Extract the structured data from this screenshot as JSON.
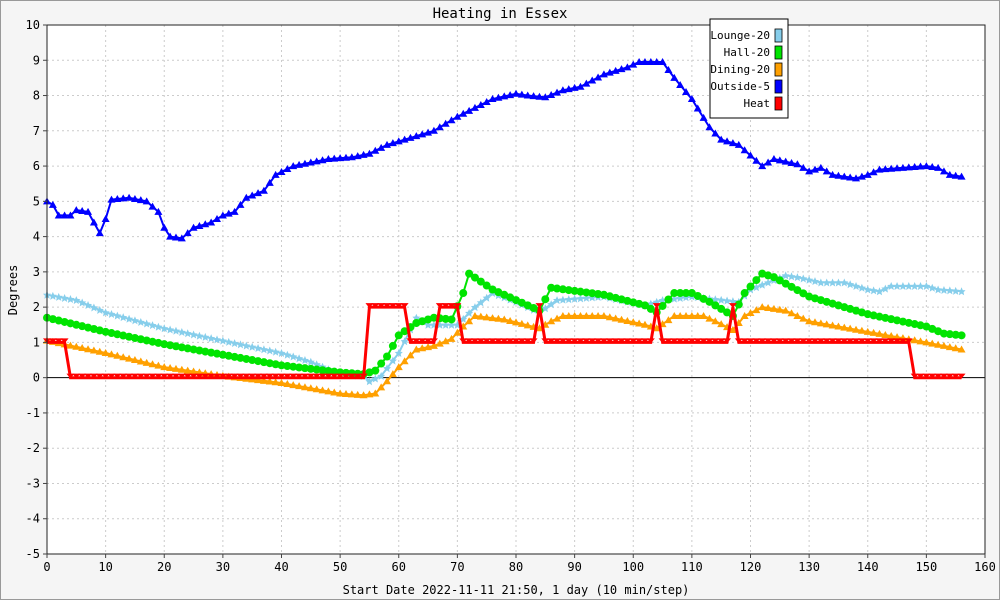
{
  "chart_data": {
    "type": "line",
    "title": "Heating in Essex",
    "xlabel": "Start Date 2022-11-11 21:50, 1 day (10 min/step)",
    "ylabel": "Degrees",
    "xlim": [
      0,
      160
    ],
    "ylim": [
      -5,
      10
    ],
    "xticks": [
      0,
      10,
      20,
      30,
      40,
      50,
      60,
      70,
      80,
      90,
      100,
      110,
      120,
      130,
      140,
      150,
      160
    ],
    "yticks": [
      -5,
      -4,
      -3,
      -2,
      -1,
      0,
      1,
      2,
      3,
      4,
      5,
      6,
      7,
      8,
      9,
      10
    ],
    "grid": true,
    "legend_position": "top-right",
    "series": [
      {
        "name": "Lounge-20",
        "color": "#87ceeb",
        "marker": "star",
        "points": [
          [
            0,
            2.35
          ],
          [
            5,
            2.2
          ],
          [
            10,
            1.85
          ],
          [
            20,
            1.4
          ],
          [
            30,
            1.05
          ],
          [
            40,
            0.7
          ],
          [
            45,
            0.45
          ],
          [
            50,
            0.1
          ],
          [
            54,
            0.05
          ],
          [
            55,
            -0.1
          ],
          [
            57,
            0.05
          ],
          [
            60,
            0.7
          ],
          [
            63,
            1.7
          ],
          [
            65,
            1.5
          ],
          [
            68,
            1.5
          ],
          [
            70,
            1.5
          ],
          [
            73,
            2.0
          ],
          [
            76,
            2.4
          ],
          [
            80,
            2.15
          ],
          [
            84,
            1.85
          ],
          [
            87,
            2.2
          ],
          [
            95,
            2.3
          ],
          [
            102,
            2.05
          ],
          [
            105,
            2.2
          ],
          [
            110,
            2.3
          ],
          [
            118,
            2.15
          ],
          [
            120,
            2.5
          ],
          [
            126,
            2.9
          ],
          [
            128,
            2.85
          ],
          [
            132,
            2.7
          ],
          [
            136,
            2.7
          ],
          [
            140,
            2.5
          ],
          [
            142,
            2.45
          ],
          [
            144,
            2.6
          ],
          [
            150,
            2.6
          ],
          [
            152,
            2.5
          ],
          [
            156,
            2.45
          ]
        ]
      },
      {
        "name": "Hall-20",
        "color": "#00e400",
        "marker": "circle",
        "points": [
          [
            0,
            1.7
          ],
          [
            10,
            1.3
          ],
          [
            20,
            0.95
          ],
          [
            30,
            0.65
          ],
          [
            40,
            0.35
          ],
          [
            50,
            0.15
          ],
          [
            54,
            0.1
          ],
          [
            56,
            0.2
          ],
          [
            58,
            0.6
          ],
          [
            60,
            1.2
          ],
          [
            63,
            1.55
          ],
          [
            66,
            1.7
          ],
          [
            69,
            1.65
          ],
          [
            71,
            2.4
          ],
          [
            72,
            2.95
          ],
          [
            76,
            2.5
          ],
          [
            80,
            2.2
          ],
          [
            84,
            1.9
          ],
          [
            86,
            2.55
          ],
          [
            95,
            2.35
          ],
          [
            102,
            2.05
          ],
          [
            104,
            1.85
          ],
          [
            107,
            2.4
          ],
          [
            110,
            2.4
          ],
          [
            113,
            2.15
          ],
          [
            117,
            1.75
          ],
          [
            119,
            2.4
          ],
          [
            122,
            2.95
          ],
          [
            124,
            2.85
          ],
          [
            130,
            2.3
          ],
          [
            140,
            1.8
          ],
          [
            150,
            1.45
          ],
          [
            153,
            1.25
          ],
          [
            156,
            1.2
          ]
        ]
      },
      {
        "name": "Dining-20",
        "color": "#ffa000",
        "marker": "triangle",
        "points": [
          [
            0,
            1.05
          ],
          [
            10,
            0.7
          ],
          [
            20,
            0.3
          ],
          [
            30,
            0.05
          ],
          [
            40,
            -0.15
          ],
          [
            50,
            -0.45
          ],
          [
            54,
            -0.5
          ],
          [
            56,
            -0.45
          ],
          [
            58,
            -0.1
          ],
          [
            60,
            0.3
          ],
          [
            63,
            0.8
          ],
          [
            66,
            0.9
          ],
          [
            69,
            1.1
          ],
          [
            71,
            1.45
          ],
          [
            73,
            1.75
          ],
          [
            78,
            1.65
          ],
          [
            84,
            1.4
          ],
          [
            86,
            1.6
          ],
          [
            88,
            1.75
          ],
          [
            95,
            1.75
          ],
          [
            102,
            1.5
          ],
          [
            104,
            1.4
          ],
          [
            107,
            1.75
          ],
          [
            112,
            1.75
          ],
          [
            114,
            1.6
          ],
          [
            117,
            1.35
          ],
          [
            119,
            1.75
          ],
          [
            122,
            2.0
          ],
          [
            126,
            1.9
          ],
          [
            130,
            1.6
          ],
          [
            140,
            1.3
          ],
          [
            150,
            1.0
          ],
          [
            156,
            0.8
          ]
        ]
      },
      {
        "name": "Outside-5",
        "color": "#0000ff",
        "marker": "triangle",
        "points": [
          [
            0,
            5.0
          ],
          [
            1,
            4.9
          ],
          [
            2,
            4.6
          ],
          [
            4,
            4.6
          ],
          [
            5,
            4.75
          ],
          [
            7,
            4.7
          ],
          [
            9,
            4.1
          ],
          [
            10,
            4.5
          ],
          [
            11,
            5.05
          ],
          [
            14,
            5.1
          ],
          [
            17,
            5.0
          ],
          [
            19,
            4.7
          ],
          [
            20,
            4.25
          ],
          [
            21,
            4.0
          ],
          [
            23,
            3.95
          ],
          [
            25,
            4.25
          ],
          [
            28,
            4.4
          ],
          [
            30,
            4.6
          ],
          [
            32,
            4.7
          ],
          [
            34,
            5.1
          ],
          [
            37,
            5.3
          ],
          [
            39,
            5.75
          ],
          [
            42,
            6.0
          ],
          [
            48,
            6.2
          ],
          [
            52,
            6.25
          ],
          [
            55,
            6.35
          ],
          [
            58,
            6.6
          ],
          [
            62,
            6.8
          ],
          [
            66,
            7.0
          ],
          [
            70,
            7.4
          ],
          [
            73,
            7.65
          ],
          [
            76,
            7.9
          ],
          [
            80,
            8.05
          ],
          [
            82,
            8.0
          ],
          [
            85,
            7.95
          ],
          [
            88,
            8.15
          ],
          [
            91,
            8.25
          ],
          [
            95,
            8.6
          ],
          [
            99,
            8.8
          ],
          [
            101,
            8.95
          ],
          [
            105,
            8.95
          ],
          [
            107,
            8.5
          ],
          [
            110,
            7.9
          ],
          [
            113,
            7.1
          ],
          [
            115,
            6.75
          ],
          [
            118,
            6.6
          ],
          [
            120,
            6.3
          ],
          [
            122,
            6.0
          ],
          [
            124,
            6.2
          ],
          [
            128,
            6.05
          ],
          [
            130,
            5.85
          ],
          [
            132,
            5.95
          ],
          [
            134,
            5.75
          ],
          [
            138,
            5.65
          ],
          [
            140,
            5.75
          ],
          [
            142,
            5.9
          ],
          [
            146,
            5.95
          ],
          [
            150,
            6.0
          ],
          [
            152,
            5.95
          ],
          [
            154,
            5.75
          ],
          [
            156,
            5.7
          ]
        ]
      },
      {
        "name": "Heat",
        "color": "#ff0000",
        "marker": "chevron",
        "points": [
          [
            0,
            1
          ],
          [
            3,
            1
          ],
          [
            4,
            0
          ],
          [
            54,
            0
          ],
          [
            55,
            2
          ],
          [
            61,
            2
          ],
          [
            62,
            1
          ],
          [
            66,
            1
          ],
          [
            67,
            2
          ],
          [
            70,
            2
          ],
          [
            71,
            1
          ],
          [
            83,
            1
          ],
          [
            84,
            2
          ],
          [
            85,
            1
          ],
          [
            103,
            1
          ],
          [
            104,
            2
          ],
          [
            105,
            1
          ],
          [
            116,
            1
          ],
          [
            117,
            2
          ],
          [
            118,
            1
          ],
          [
            147,
            1
          ],
          [
            148,
            0
          ],
          [
            156,
            0
          ]
        ]
      }
    ]
  }
}
